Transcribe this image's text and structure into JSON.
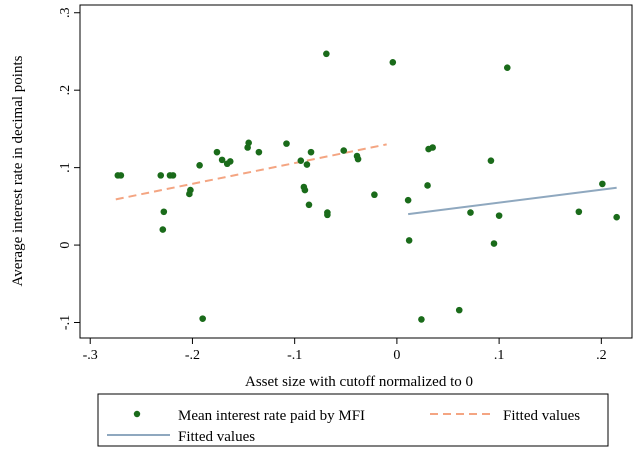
{
  "chart_data": {
    "type": "scatter",
    "xlabel": "Asset size with cutoff normalized to 0",
    "ylabel": "Average interest rate in decimal points",
    "xlim": [
      -0.31,
      0.23
    ],
    "ylim": [
      -0.12,
      0.31
    ],
    "x_ticks": [
      -0.3,
      -0.2,
      -0.1,
      0,
      0.1,
      0.2
    ],
    "x_tick_labels": [
      "-.3",
      "-.2",
      "-.1",
      "0",
      ".1",
      ".2"
    ],
    "y_ticks": [
      -0.1,
      0,
      0.1,
      0.2,
      0.3
    ],
    "y_tick_labels": [
      "-.1",
      "0",
      ".1",
      ".2",
      ".3"
    ],
    "grid": false,
    "legend_position": "bottom",
    "colors": {
      "scatter": "#1a6b1a",
      "fit_left": "#f4a582",
      "fit_right": "#8fa8bf"
    },
    "series": [
      {
        "name": "Mean interest rate paid by MFI",
        "kind": "scatter",
        "points": [
          [
            -0.273,
            0.09
          ],
          [
            -0.27,
            0.09
          ],
          [
            -0.231,
            0.09
          ],
          [
            -0.229,
            0.02
          ],
          [
            -0.228,
            0.043
          ],
          [
            -0.222,
            0.09
          ],
          [
            -0.219,
            0.09
          ],
          [
            -0.203,
            0.066
          ],
          [
            -0.202,
            0.071
          ],
          [
            -0.193,
            0.103
          ],
          [
            -0.19,
            -0.095
          ],
          [
            -0.176,
            0.12
          ],
          [
            -0.171,
            0.11
          ],
          [
            -0.166,
            0.105
          ],
          [
            -0.163,
            0.108
          ],
          [
            -0.146,
            0.126
          ],
          [
            -0.145,
            0.132
          ],
          [
            -0.135,
            0.12
          ],
          [
            -0.108,
            0.131
          ],
          [
            -0.094,
            0.109
          ],
          [
            -0.091,
            0.075
          ],
          [
            -0.09,
            0.071
          ],
          [
            -0.088,
            0.104
          ],
          [
            -0.086,
            0.052
          ],
          [
            -0.084,
            0.12
          ],
          [
            -0.069,
            0.247
          ],
          [
            -0.068,
            0.042
          ],
          [
            -0.068,
            0.039
          ],
          [
            -0.052,
            0.122
          ],
          [
            -0.039,
            0.115
          ],
          [
            -0.038,
            0.111
          ],
          [
            -0.022,
            0.065
          ],
          [
            -0.004,
            0.236
          ],
          [
            0.011,
            0.058
          ],
          [
            0.012,
            0.006
          ],
          [
            0.024,
            -0.096
          ],
          [
            0.03,
            0.077
          ],
          [
            0.031,
            0.124
          ],
          [
            0.035,
            0.126
          ],
          [
            0.061,
            -0.084
          ],
          [
            0.072,
            0.042
          ],
          [
            0.092,
            0.109
          ],
          [
            0.095,
            0.002
          ],
          [
            0.1,
            0.038
          ],
          [
            0.108,
            0.229
          ],
          [
            0.178,
            0.043
          ],
          [
            0.201,
            0.079
          ],
          [
            0.215,
            0.036
          ]
        ]
      },
      {
        "name": "Fitted values",
        "kind": "line",
        "style": "dashed",
        "x": [
          -0.275,
          -0.01
        ],
        "y": [
          0.059,
          0.13
        ]
      },
      {
        "name": "Fitted values",
        "kind": "line",
        "style": "solid",
        "x": [
          0.011,
          0.215
        ],
        "y": [
          0.04,
          0.074
        ]
      }
    ]
  }
}
